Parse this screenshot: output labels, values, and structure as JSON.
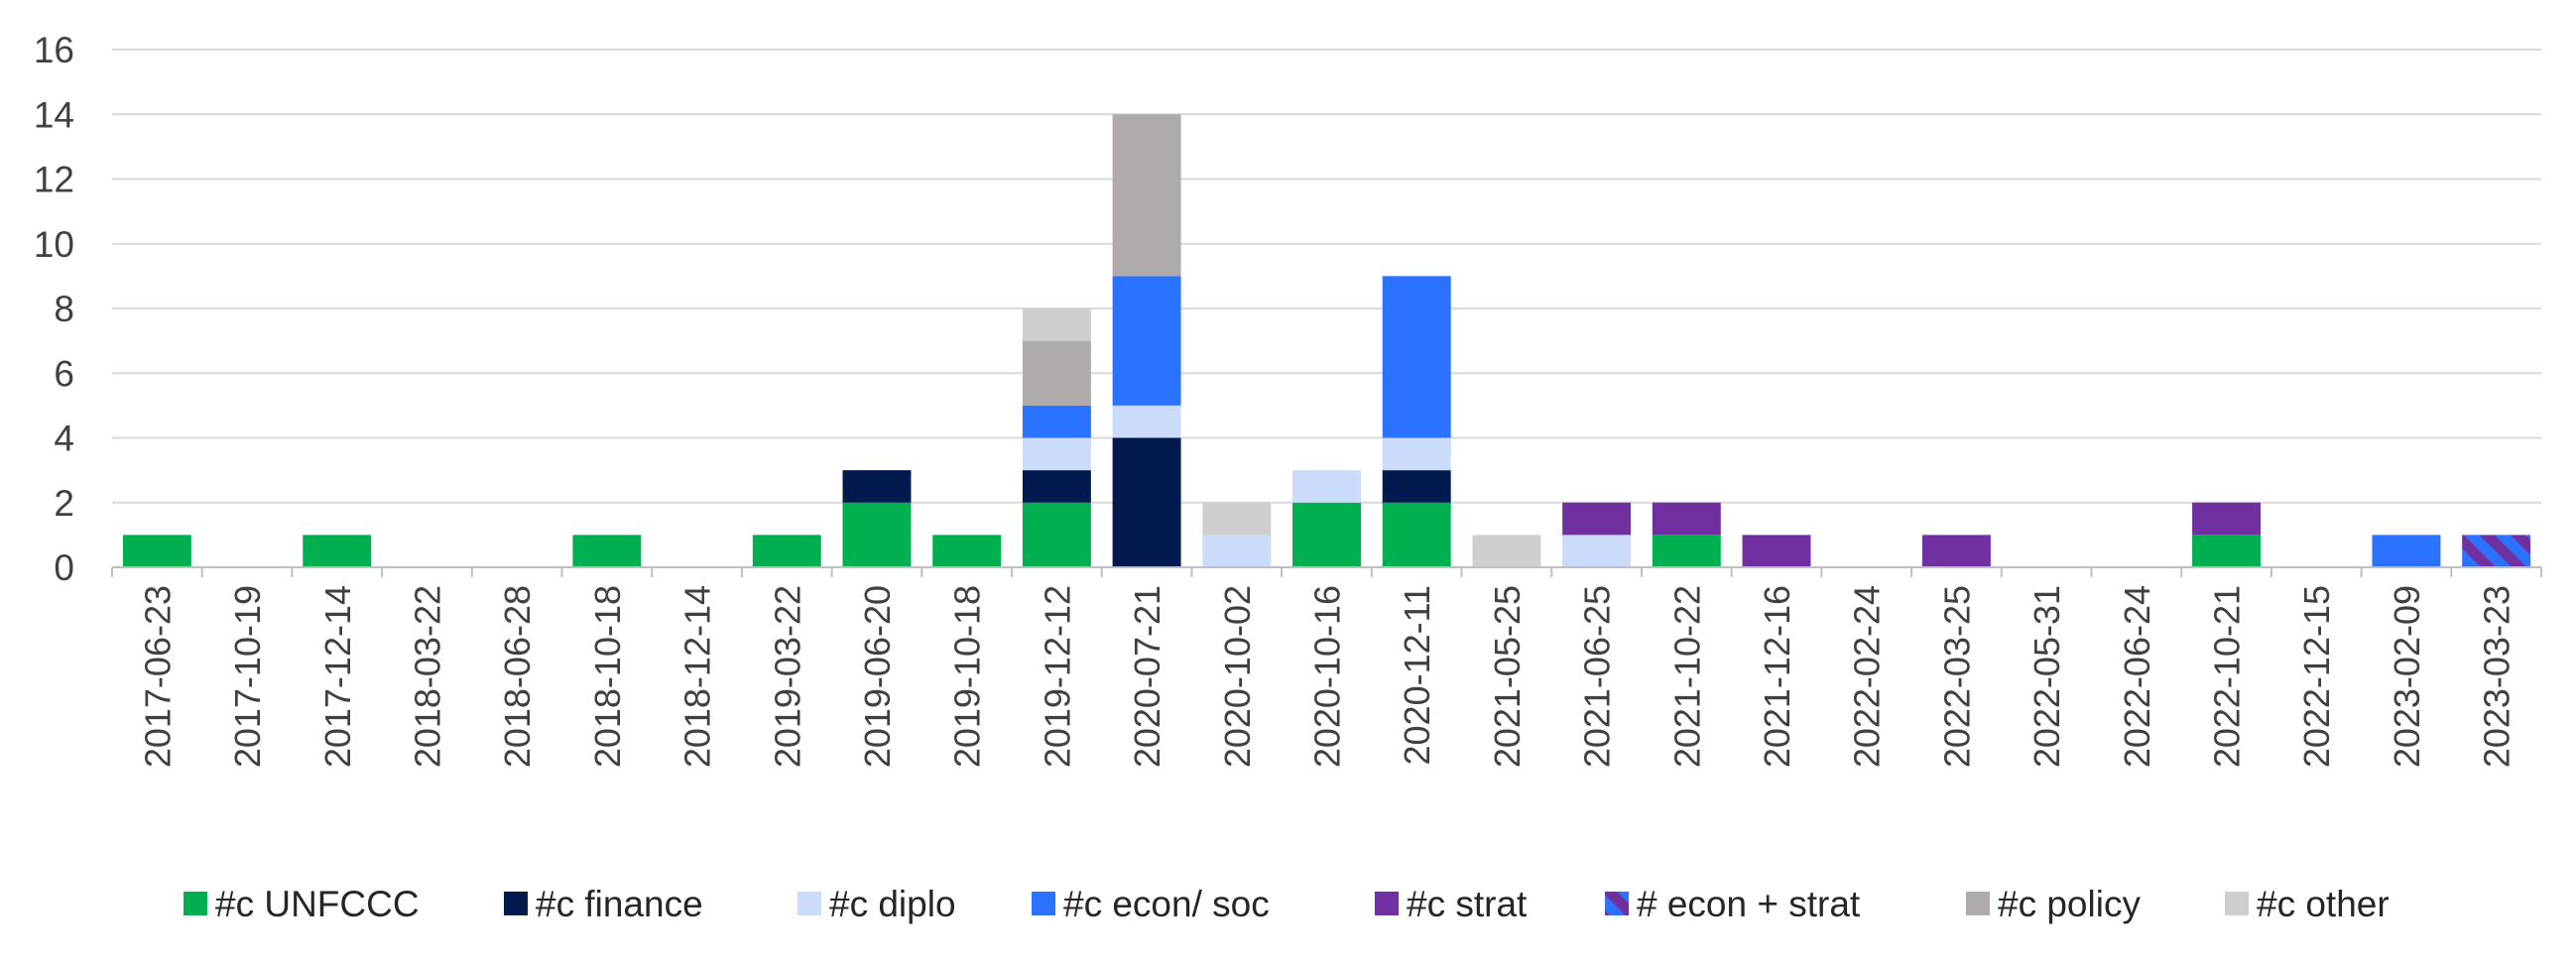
{
  "chart_data": {
    "type": "bar",
    "stacked": true,
    "grid": true,
    "legend_position": "bottom",
    "ylim": [
      0,
      16
    ],
    "yticks": [
      0,
      2,
      4,
      6,
      8,
      10,
      12,
      14,
      16
    ],
    "categories": [
      "2017-06-23",
      "2017-10-19",
      "2017-12-14",
      "2018-03-22",
      "2018-06-28",
      "2018-10-18",
      "2018-12-14",
      "2019-03-22",
      "2019-06-20",
      "2019-10-18",
      "2019-12-12",
      "2020-07-21",
      "2020-10-02",
      "2020-10-16",
      "2020-12-11",
      "2021-05-25",
      "2021-06-25",
      "2021-10-22",
      "2021-12-16",
      "2022-02-24",
      "2022-03-25",
      "2022-05-31",
      "2022-06-24",
      "2022-10-21",
      "2022-12-15",
      "2023-02-09",
      "2023-03-23"
    ],
    "series": [
      {
        "name": "#c UNFCCC",
        "color": "#00b050",
        "values": [
          1,
          0,
          1,
          0,
          0,
          1,
          0,
          1,
          2,
          1,
          2,
          0,
          0,
          2,
          2,
          0,
          0,
          1,
          0,
          0,
          0,
          0,
          0,
          1,
          0,
          0,
          0
        ]
      },
      {
        "name": "#c finance",
        "color": "#001a4d",
        "values": [
          0,
          0,
          0,
          0,
          0,
          0,
          0,
          0,
          1,
          0,
          1,
          4,
          0,
          0,
          1,
          0,
          0,
          0,
          0,
          0,
          0,
          0,
          0,
          0,
          0,
          0,
          0
        ]
      },
      {
        "name": "#c diplo",
        "color": "#cbdcfb",
        "values": [
          0,
          0,
          0,
          0,
          0,
          0,
          0,
          0,
          0,
          0,
          1,
          1,
          1,
          1,
          1,
          0,
          1,
          0,
          0,
          0,
          0,
          0,
          0,
          0,
          0,
          0,
          0
        ]
      },
      {
        "name": "#c econ/ soc",
        "color": "#2a72ff",
        "values": [
          0,
          0,
          0,
          0,
          0,
          0,
          0,
          0,
          0,
          0,
          1,
          4,
          0,
          0,
          5,
          0,
          0,
          0,
          0,
          0,
          0,
          0,
          0,
          0,
          0,
          1,
          0
        ]
      },
      {
        "name": "#c strat",
        "color": "#7030a0",
        "values": [
          0,
          0,
          0,
          0,
          0,
          0,
          0,
          0,
          0,
          0,
          0,
          0,
          0,
          0,
          0,
          0,
          1,
          1,
          1,
          0,
          1,
          0,
          0,
          1,
          0,
          0,
          0
        ]
      },
      {
        "name": "# econ + strat",
        "color": "#7030a0",
        "color2": "#2a72ff",
        "pattern": "stripes",
        "values": [
          0,
          0,
          0,
          0,
          0,
          0,
          0,
          0,
          0,
          0,
          0,
          0,
          0,
          0,
          0,
          0,
          0,
          0,
          0,
          0,
          0,
          0,
          0,
          0,
          0,
          0,
          1
        ]
      },
      {
        "name": "#c policy",
        "color": "#afabab",
        "values": [
          0,
          0,
          0,
          0,
          0,
          0,
          0,
          0,
          0,
          0,
          2,
          5,
          0,
          0,
          0,
          0,
          0,
          0,
          0,
          0,
          0,
          0,
          0,
          0,
          0,
          0,
          0
        ]
      },
      {
        "name": "#c other",
        "color": "#d0cece",
        "values": [
          0,
          0,
          0,
          0,
          0,
          0,
          0,
          0,
          0,
          0,
          1,
          0,
          1,
          0,
          0,
          1,
          0,
          0,
          0,
          0,
          0,
          0,
          0,
          0,
          0,
          0,
          0
        ]
      }
    ]
  }
}
